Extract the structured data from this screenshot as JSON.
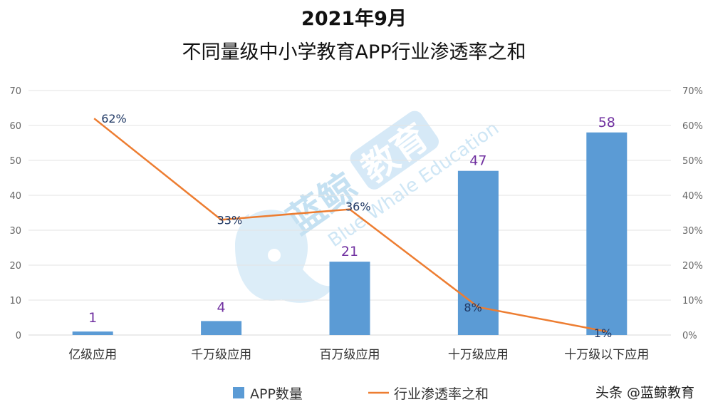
{
  "chart_data": {
    "type": "bar+line",
    "title": "2021年9月",
    "subtitle": "不同量级中小学教育APP行业渗透率之和",
    "categories": [
      "亿级应用",
      "千万级应用",
      "百万级应用",
      "十万级应用",
      "十万级以下应用"
    ],
    "series": [
      {
        "name": "APP数量",
        "type": "bar",
        "axis": "left",
        "color": "#5b9bd5",
        "values": [
          1,
          4,
          21,
          47,
          58
        ],
        "labels": [
          "1",
          "4",
          "21",
          "47",
          "58"
        ]
      },
      {
        "name": "行业渗透率之和",
        "type": "line",
        "axis": "right",
        "color": "#ed7d31",
        "values": [
          62,
          33,
          36,
          8,
          1
        ],
        "labels": [
          "62%",
          "33%",
          "36%",
          "8%",
          "1%"
        ]
      }
    ],
    "left_axis": {
      "min": 0,
      "max": 70,
      "ticks": [
        "0",
        "10",
        "20",
        "30",
        "40",
        "50",
        "60",
        "70"
      ]
    },
    "right_axis": {
      "min": 0,
      "max": 70,
      "ticks": [
        "0%",
        "10%",
        "20%",
        "30%",
        "40%",
        "50%",
        "60%",
        "70%"
      ]
    },
    "grid": true,
    "legend": "bottom"
  },
  "watermark": {
    "brand_cn": "蓝鲸",
    "brand_box": "教育",
    "brand_en": "Blue Whale Education",
    "icon": "whale-logo-icon"
  },
  "credit": {
    "text": "头条 @蓝鲸教育"
  }
}
